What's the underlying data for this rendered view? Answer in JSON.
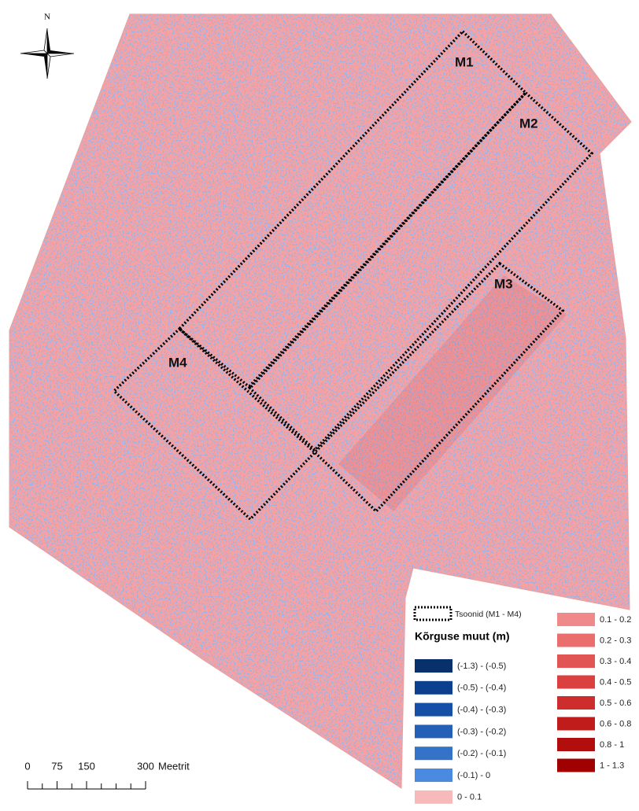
{
  "north_label": "N",
  "zones": [
    {
      "label": "M1"
    },
    {
      "label": "M2"
    },
    {
      "label": "M3"
    },
    {
      "label": "M4"
    }
  ],
  "legend": {
    "zones_label": "Tsoonid (M1 - M4)",
    "title": "Kõrguse muut (m)",
    "classes": [
      {
        "label": "(-1.3) - (-0.5)",
        "color": "#08306b"
      },
      {
        "label": "(-0.5) - (-0.4)",
        "color": "#0d3f8f"
      },
      {
        "label": "(-0.4) - (-0.3)",
        "color": "#164fa6"
      },
      {
        "label": "(-0.3) - (-0.2)",
        "color": "#2360b6"
      },
      {
        "label": "(-0.2) - (-0.1)",
        "color": "#3473c8"
      },
      {
        "label": "(-0.1) - 0",
        "color": "#4a8ae0"
      },
      {
        "label": "0 - 0.1",
        "color": "#f7b9b9"
      },
      {
        "label": "0.1 - 0.2",
        "color": "#f08a8a"
      },
      {
        "label": "0.2 - 0.3",
        "color": "#ea6e6e"
      },
      {
        "label": "0.3 - 0.4",
        "color": "#e25555"
      },
      {
        "label": "0.4 - 0.5",
        "color": "#da4040"
      },
      {
        "label": "0.5 - 0.6",
        "color": "#cd2d2d"
      },
      {
        "label": "0.6 - 0.8",
        "color": "#c01c1c"
      },
      {
        "label": "0.8 - 1",
        "color": "#b20e0e"
      },
      {
        "label": "1 - 1.3",
        "color": "#a00000"
      }
    ]
  },
  "scale_bar": {
    "ticks": [
      0,
      75,
      150,
      300
    ],
    "unit": "Meetrit"
  }
}
